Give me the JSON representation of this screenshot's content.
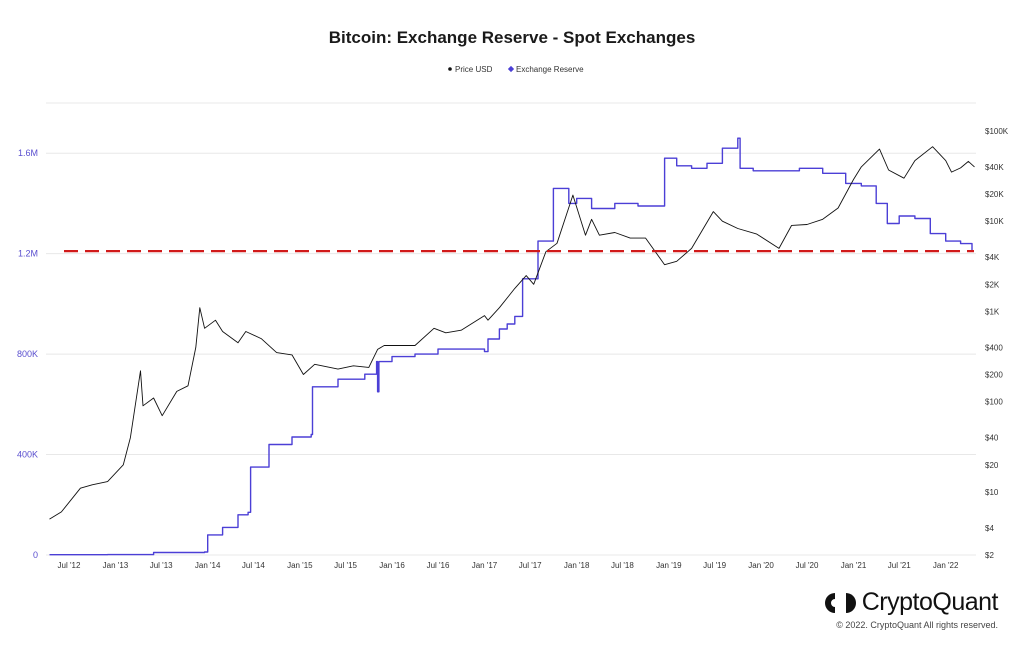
{
  "chart_data": {
    "type": "line",
    "title": "Bitcoin: Exchange Reserve - Spot Exchanges",
    "legend": {
      "placement": "top-center",
      "entries": [
        "Price USD",
        "Exchange Reserve"
      ]
    },
    "x_tick_labels": [
      "Jul '12",
      "Jan '13",
      "Jul '13",
      "Jan '14",
      "Jul '14",
      "Jan '15",
      "Jul '15",
      "Jan '16",
      "Jul '16",
      "Jan '17",
      "Jul '17",
      "Jan '18",
      "Jul '18",
      "Jan '19",
      "Jul '19",
      "Jan '20",
      "Jul '20",
      "Jan '21",
      "Jul '21",
      "Jan '22"
    ],
    "x_range": [
      "2012-04-01",
      "2022-05-01"
    ],
    "y_left": {
      "ticks": [
        0,
        400000,
        800000,
        1200000,
        1600000
      ],
      "tick_labels": [
        "0",
        "400K",
        "800K",
        "1.2M",
        "1.6M"
      ],
      "range": [
        0,
        1800000
      ]
    },
    "y_right": {
      "scale": "log",
      "ticks": [
        2,
        4,
        10,
        20,
        40,
        100,
        200,
        400,
        1000,
        2000,
        4000,
        10000,
        20000,
        40000,
        100000
      ],
      "tick_labels": [
        "$2",
        "$4",
        "$10",
        "$20",
        "$40",
        "$100",
        "$200",
        "$400",
        "$1K",
        "$2K",
        "$4K",
        "$10K",
        "$20K",
        "$40K",
        "$100K"
      ],
      "range": [
        2,
        100000
      ]
    },
    "grid": true,
    "reference_line": {
      "y": 1210000,
      "axis": "left",
      "color": "#d11a1a",
      "style": "dashed"
    },
    "series": [
      {
        "name": "Exchange Reserve",
        "axis": "left",
        "color": "#4b3fd6",
        "x": [
          "2012-04-15",
          "2012-08-01",
          "2012-12-01",
          "2013-02-01",
          "2013-04-15",
          "2013-06-01",
          "2013-10-01",
          "2013-12-20",
          "2014-01-01",
          "2014-03-01",
          "2014-05-01",
          "2014-06-10",
          "2014-06-20",
          "2014-09-01",
          "2014-12-01",
          "2015-02-15",
          "2015-02-20",
          "2015-06-01",
          "2015-09-15",
          "2015-11-01",
          "2015-11-05",
          "2015-11-10",
          "2016-01-01",
          "2016-04-01",
          "2016-07-01",
          "2016-10-01",
          "2017-01-01",
          "2017-01-15",
          "2017-03-01",
          "2017-04-01",
          "2017-05-01",
          "2017-06-01",
          "2017-08-01",
          "2017-10-01",
          "2017-12-01",
          "2018-01-01",
          "2018-03-01",
          "2018-06-01",
          "2018-09-01",
          "2018-12-01",
          "2018-12-15",
          "2019-02-01",
          "2019-04-01",
          "2019-06-01",
          "2019-08-01",
          "2019-10-01",
          "2019-10-10",
          "2019-12-01",
          "2020-03-01",
          "2020-06-01",
          "2020-09-01",
          "2020-12-01",
          "2021-02-01",
          "2021-04-01",
          "2021-05-15",
          "2021-07-01",
          "2021-09-01",
          "2021-11-01",
          "2022-01-01",
          "2022-03-01",
          "2022-04-15"
        ],
        "values": [
          1000,
          1000,
          1500,
          1500,
          1500,
          10000,
          10000,
          12000,
          80000,
          110000,
          160000,
          170000,
          350000,
          440000,
          470000,
          480000,
          670000,
          700000,
          720000,
          770000,
          650000,
          770000,
          790000,
          800000,
          820000,
          820000,
          810000,
          860000,
          900000,
          920000,
          950000,
          1100000,
          1250000,
          1460000,
          1400000,
          1420000,
          1380000,
          1400000,
          1390000,
          1390000,
          1580000,
          1550000,
          1540000,
          1560000,
          1620000,
          1660000,
          1540000,
          1530000,
          1530000,
          1540000,
          1520000,
          1480000,
          1470000,
          1400000,
          1320000,
          1350000,
          1340000,
          1280000,
          1250000,
          1240000,
          1210000
        ]
      },
      {
        "name": "Price USD",
        "axis": "right",
        "color": "#111111",
        "x": [
          "2012-04-15",
          "2012-06-01",
          "2012-08-15",
          "2012-10-01",
          "2012-12-01",
          "2013-02-01",
          "2013-03-01",
          "2013-04-10",
          "2013-04-20",
          "2013-06-01",
          "2013-07-05",
          "2013-09-01",
          "2013-10-15",
          "2013-11-15",
          "2013-12-01",
          "2013-12-20",
          "2014-02-01",
          "2014-03-01",
          "2014-05-01",
          "2014-06-01",
          "2014-08-01",
          "2014-10-01",
          "2014-12-01",
          "2015-01-15",
          "2015-03-01",
          "2015-06-01",
          "2015-08-01",
          "2015-10-01",
          "2015-11-05",
          "2015-12-01",
          "2016-02-01",
          "2016-04-01",
          "2016-06-15",
          "2016-08-01",
          "2016-10-01",
          "2017-01-01",
          "2017-01-15",
          "2017-03-01",
          "2017-05-01",
          "2017-06-15",
          "2017-07-15",
          "2017-09-01",
          "2017-10-15",
          "2017-12-17",
          "2018-02-05",
          "2018-03-01",
          "2018-04-01",
          "2018-06-01",
          "2018-08-01",
          "2018-10-01",
          "2018-12-15",
          "2019-02-01",
          "2019-04-01",
          "2019-06-26",
          "2019-08-01",
          "2019-10-01",
          "2019-12-15",
          "2020-03-12",
          "2020-05-01",
          "2020-07-01",
          "2020-09-01",
          "2020-11-01",
          "2021-01-01",
          "2021-02-01",
          "2021-04-14",
          "2021-05-20",
          "2021-07-20",
          "2021-09-01",
          "2021-11-10",
          "2022-01-01",
          "2022-01-24",
          "2022-03-01",
          "2022-04-01",
          "2022-04-25"
        ],
        "values": [
          5,
          6,
          11,
          12,
          13,
          20,
          40,
          220,
          90,
          110,
          70,
          130,
          150,
          400,
          1100,
          650,
          800,
          600,
          450,
          600,
          500,
          350,
          330,
          200,
          260,
          230,
          250,
          240,
          380,
          420,
          420,
          420,
          650,
          580,
          620,
          900,
          800,
          1100,
          1800,
          2500,
          2000,
          4600,
          5700,
          19500,
          7000,
          10500,
          7000,
          7500,
          6500,
          6500,
          3300,
          3600,
          5000,
          12800,
          10000,
          8300,
          7200,
          5000,
          9000,
          9200,
          10500,
          14000,
          29000,
          40000,
          63000,
          37000,
          30000,
          47000,
          67000,
          47000,
          35000,
          39000,
          46000,
          40000
        ]
      }
    ]
  },
  "branding": {
    "logo_text": "CryptoQuant",
    "copyright": "© 2022. CryptoQuant All rights reserved."
  }
}
